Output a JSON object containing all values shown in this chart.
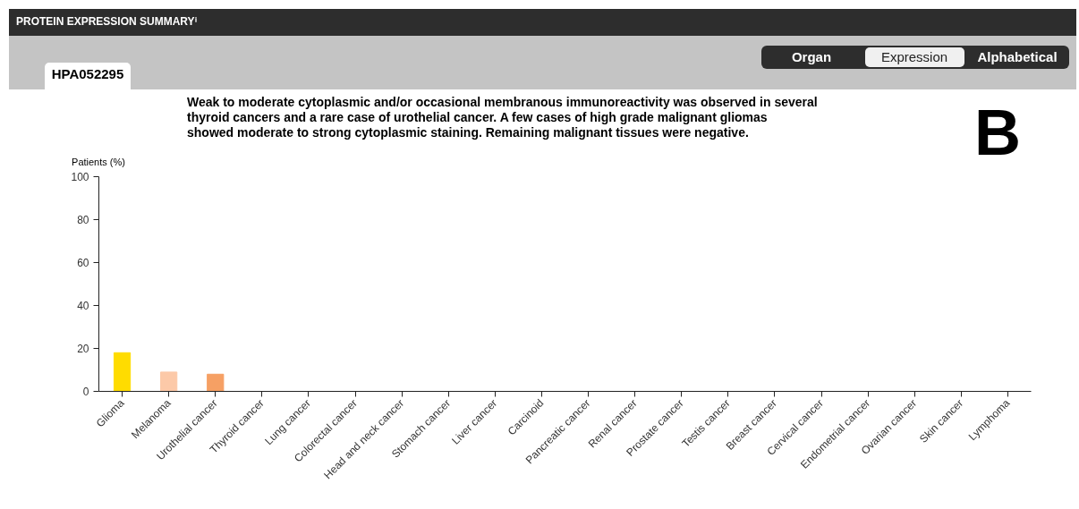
{
  "chart_data": {
    "type": "bar",
    "title": "PROTEIN EXPRESSION SUMMARYⁱ",
    "subtitle": "Weak to moderate cytoplasmic and/or occasional membranous immunoreactivity was observed in several thyroid cancers and a rare case of urothelial cancer. A few cases of high grade malignant gliomas showed moderate to strong cytoplasmic staining. Remaining malignant tissues were negative.",
    "ylabel": "Patients (%)",
    "categories": [
      "Glioma",
      "Melanoma",
      "Urothelial cancer",
      "Thyroid cancer",
      "Lung cancer",
      "Colorectal cancer",
      "Head and neck cancer",
      "Stomach cancer",
      "Liver cancer",
      "Carcinoid",
      "Pancreatic cancer",
      "Renal cancer",
      "Prostate cancer",
      "Testis cancer",
      "Breast cancer",
      "Cervical cancer",
      "Endometrial cancer",
      "Ovarian cancer",
      "Skin cancer",
      "Lymphoma"
    ],
    "values": [
      18,
      9,
      8,
      0,
      0,
      0,
      0,
      0,
      0,
      0,
      0,
      0,
      0,
      0,
      0,
      0,
      0,
      0,
      0,
      0
    ],
    "colors": [
      "#ffdc00",
      "#fcc9a8",
      "#f6a064",
      "#cccccc",
      "#cccccc",
      "#cccccc",
      "#cccccc",
      "#cccccc",
      "#cccccc",
      "#cccccc",
      "#cccccc",
      "#cccccc",
      "#cccccc",
      "#cccccc",
      "#cccccc",
      "#cccccc",
      "#cccccc",
      "#cccccc",
      "#cccccc",
      "#cccccc"
    ],
    "ylim": [
      0,
      100
    ],
    "yticks": [
      0,
      20,
      40,
      60,
      80,
      100
    ],
    "grid": false,
    "legend": false,
    "annotations": [
      "HPA052295",
      "Organ",
      "Expression",
      "Alphabetical",
      "B"
    ]
  }
}
